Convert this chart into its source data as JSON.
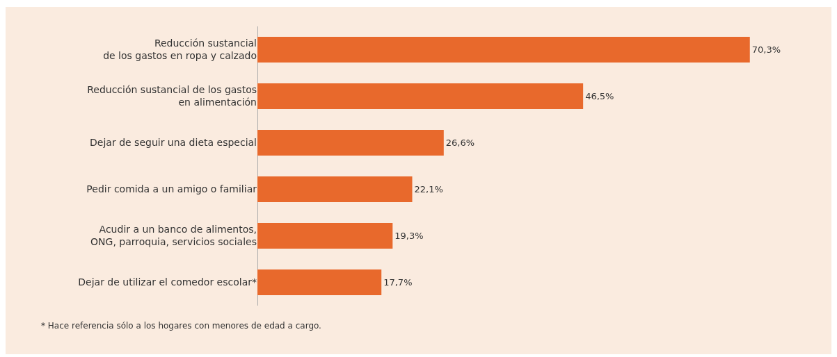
{
  "chart_data": {
    "type": "bar",
    "orientation": "horizontal",
    "categories": [
      "Reducción sustancial\nde los gastos en ropa y calzado",
      "Reducción sustancial de los gastos\nen alimentación",
      "Dejar de seguir una dieta especial",
      "Pedir comida a un amigo o familiar",
      "Acudir a un banco de alimentos,\nONG, parroquia, servicios sociales",
      "Dejar de utilizar el comedor escolar*"
    ],
    "values": [
      70.3,
      46.5,
      26.6,
      22.1,
      19.3,
      17.7
    ],
    "value_labels": [
      "70,3%",
      "46,5%",
      "26,6%",
      "22,1%",
      "19,3%",
      "17,7%"
    ],
    "color": "#e8692c",
    "grid": false,
    "legend": false,
    "annotations": [
      "* Hace referencia sólo a los hogares con menores de edad a cargo."
    ]
  }
}
